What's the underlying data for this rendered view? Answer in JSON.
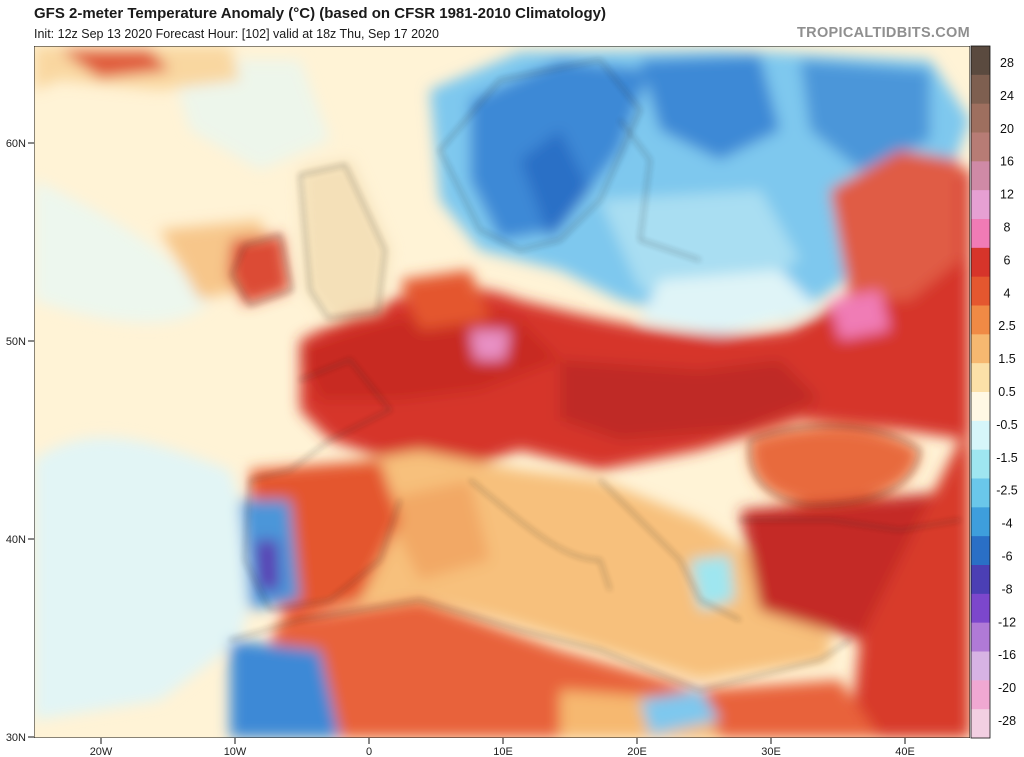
{
  "header": {
    "title": "GFS 2-meter Temperature Anomaly (°C) (based on CFSR 1981-2010 Climatology)",
    "subtitle": "Init: 12z Sep 13 2020   Forecast Hour: [102]   valid at 18z Thu, Sep 17 2020",
    "brand": "TROPICALTIDBITS.COM"
  },
  "map": {
    "lat_labels": [
      "60N",
      "50N",
      "40N",
      "30N"
    ],
    "lon_labels": [
      "20W",
      "10W",
      "0",
      "10E",
      "20E",
      "30E",
      "40E"
    ]
  },
  "colorbar": {
    "labels": [
      "28",
      "24",
      "20",
      "16",
      "12",
      "8",
      "6",
      "4",
      "2.5",
      "1.5",
      "0.5",
      "-0.5",
      "-1.5",
      "-2.5",
      "-4",
      "-6",
      "-8",
      "-12",
      "-16",
      "-20",
      "-28"
    ],
    "colors": [
      "#5a4a3f",
      "#7e5f50",
      "#9e6f5f",
      "#b77c75",
      "#cf8aa6",
      "#e6a0d3",
      "#f07bb5",
      "#d6342a",
      "#e4572f",
      "#f08a45",
      "#f6b870",
      "#fbe0a8",
      "#fff8e4",
      "#d6f6fa",
      "#9fe6f0",
      "#6ac7ea",
      "#3e9edc",
      "#2a6fc6",
      "#4b3fb4",
      "#7c47cc",
      "#b07ad6",
      "#d7b3e4",
      "#f0a8d2",
      "#f2cfe2"
    ]
  }
}
